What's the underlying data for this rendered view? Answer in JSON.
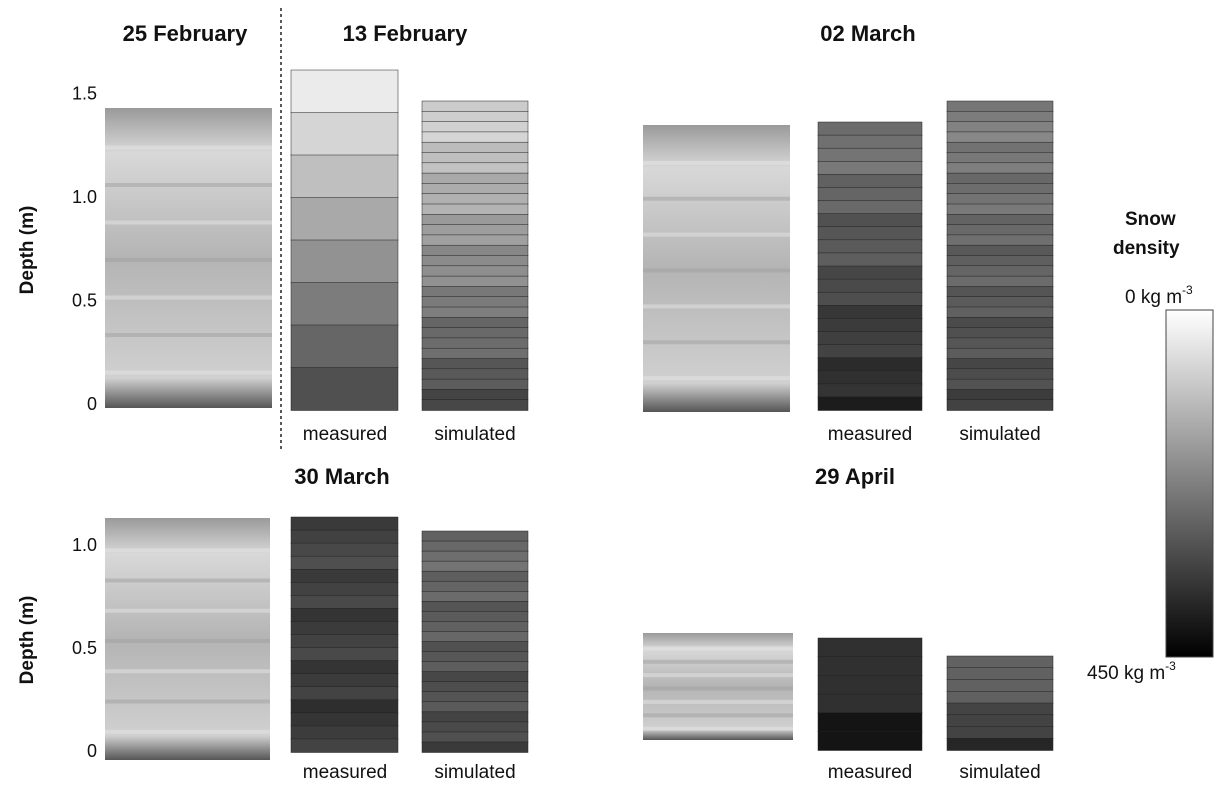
{
  "panels": [
    {
      "title": "25 February",
      "ylabel": "Depth (m)",
      "ylim": [
        0,
        1.5
      ],
      "yticks": [
        0,
        0.5,
        {
          "value": 1,
          "label": "1.0"
        },
        1.5
      ]
    },
    {
      "title": "13 February",
      "columns": [
        "measured",
        "simulated"
      ]
    },
    {
      "title": "02 March",
      "columns": [
        "measured",
        "simulated"
      ]
    },
    {
      "title": "30 March",
      "ylabel": "Depth (m)",
      "ylim": [
        0,
        1
      ],
      "yticks": [
        0,
        0.5,
        {
          "value": 1,
          "label": "1.0"
        }
      ],
      "columns": [
        "measured",
        "simulated"
      ]
    },
    {
      "title": "29 April",
      "columns": [
        "measured",
        "simulated"
      ]
    }
  ],
  "colorbar": {
    "title": [
      "Snow",
      "density"
    ],
    "top": {
      "text": "0 kg m",
      "sup": "-3"
    },
    "bottom": {
      "text": "450 kg m",
      "sup": "-3"
    }
  }
}
